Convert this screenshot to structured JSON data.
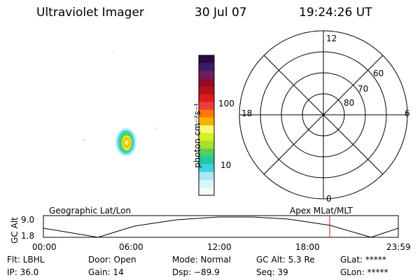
{
  "header": {
    "instrument": "Ultraviolet Imager",
    "date": "30 Jul 07",
    "time": "19:24:26 UT"
  },
  "colorbar": {
    "label": "photon cm⁻²s⁻¹",
    "ticks": [
      "100",
      "10"
    ],
    "colors": [
      "#2b0b3f",
      "#3a1a6b",
      "#6e1e5e",
      "#8e0c2a",
      "#b5121b",
      "#d81e1e",
      "#ee3d3d",
      "#ff7a00",
      "#ffb000",
      "#f8f878",
      "#d8f020",
      "#a8e030",
      "#50d060",
      "#20c8a0",
      "#40d0e0",
      "#a8e8f0",
      "#d8f4f8",
      "#f2fafc"
    ]
  },
  "polar_plot": {
    "mlt_labels": [
      "12",
      "18",
      "6",
      "0"
    ],
    "lat_labels": [
      "60",
      "70",
      "80"
    ]
  },
  "orbit_panel": {
    "ylabel": "GC Alt",
    "yticks": [
      "9.0",
      "1.8"
    ],
    "left_title": "Geographic Lat/Lon",
    "right_title": "Apex  MLat/MLT",
    "xticks": [
      "00:00",
      "06:00",
      "12:00",
      "18:00",
      "23:59"
    ],
    "marker_color": "#d01010"
  },
  "status": {
    "filter": "Flt: LBHL",
    "ip": "IP: 36.0",
    "door": "Door: Open",
    "gain": "Gain: 14",
    "mode": "Mode: Normal",
    "dsp": "Dsp:  −89.9",
    "gc_alt": "GC Alt: 5.3 Re",
    "seq": "Seq: 39",
    "glat": "GLat: *****",
    "glon": "GLon: *****"
  }
}
